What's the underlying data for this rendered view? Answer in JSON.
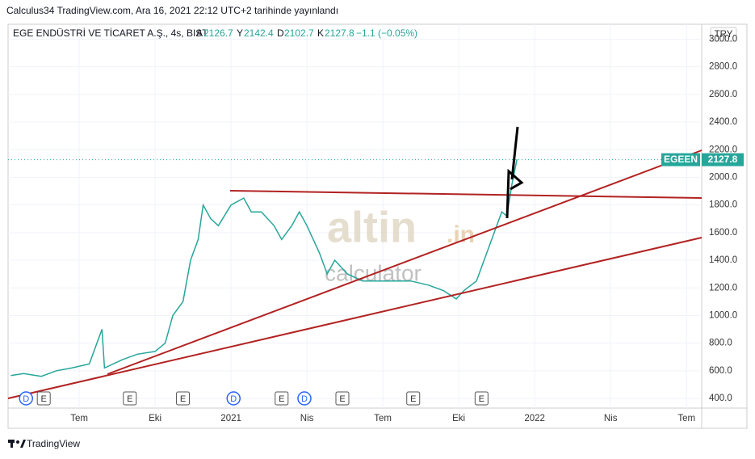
{
  "chart_data": {
    "type": "line",
    "header": "Calculus34 TradingView.com, Ara 16, 2021 22:12 UTC+2 tarihinde yayınlandı",
    "symbol_title": "EGE ENDÜSTRİ VE TİCARET A.Ş., 4s, BIST",
    "ohlc": [
      {
        "label": "A",
        "value": 2126.7
      },
      {
        "label": "Y",
        "value": 2142.4
      },
      {
        "label": "D",
        "value": 2102.7
      },
      {
        "label": "K",
        "value": 2127.8
      }
    ],
    "change": "−1.1 (−0.05%)",
    "currency": "TRY",
    "ticker": "EGEEN",
    "last_price": 2127.8,
    "watermark": [
      "altin",
      ".in",
      "calculator"
    ],
    "brand": "TradingView",
    "series": [
      {
        "name": "EGEEN",
        "color": "#26a69a",
        "x": [
          -2.7,
          -2.2,
          -1.5,
          -0.9,
          -0.3,
          0.4,
          0.9,
          1.0,
          1.7,
          2.3,
          3.0,
          3.4,
          3.7,
          4.1,
          4.4,
          4.7,
          4.9,
          5.2,
          5.5,
          6.0,
          6.5,
          6.8,
          7.2,
          7.7,
          8.0,
          8.4,
          8.7,
          9.0,
          9.5,
          9.8,
          10.1,
          10.6,
          11.2,
          11.9,
          12.5,
          13.1,
          13.8,
          14.4,
          14.9,
          15.2,
          15.7,
          16.0,
          16.3,
          16.7,
          16.9,
          17.1,
          17.3
        ],
        "values": [
          565,
          580,
          560,
          600,
          620,
          650,
          900,
          620,
          680,
          720,
          740,
          800,
          1000,
          1100,
          1400,
          1550,
          1800,
          1700,
          1650,
          1800,
          1850,
          1750,
          1750,
          1650,
          1550,
          1650,
          1750,
          1650,
          1450,
          1300,
          1400,
          1300,
          1250,
          1250,
          1250,
          1250,
          1220,
          1180,
          1120,
          1180,
          1250,
          1400,
          1550,
          1750,
          1720,
          1950,
          2130
        ]
      }
    ],
    "events": [
      {
        "label": "D",
        "x": -2.1
      },
      {
        "label": "E",
        "x": -1.4
      },
      {
        "label": "E",
        "x": 2.0
      },
      {
        "label": "E",
        "x": 4.1
      },
      {
        "label": "D",
        "x": 6.1
      },
      {
        "label": "E",
        "x": 8.0
      },
      {
        "label": "D",
        "x": 8.9
      },
      {
        "label": "E",
        "x": 10.4
      },
      {
        "label": "E",
        "x": 13.2
      },
      {
        "label": "E",
        "x": 15.9
      }
    ],
    "xlim": [
      -2.81,
      24.6
    ],
    "xticks": [
      {
        "value": 0,
        "label": "Tem"
      },
      {
        "value": 3,
        "label": "Eki"
      },
      {
        "value": 6,
        "label": "2021"
      },
      {
        "value": 9,
        "label": "Nis"
      },
      {
        "value": 12,
        "label": "Tem"
      },
      {
        "value": 15,
        "label": "Eki"
      },
      {
        "value": 18,
        "label": "2022"
      },
      {
        "value": 21,
        "label": "Nis"
      },
      {
        "value": 24,
        "label": "Tem"
      }
    ],
    "ylim": [
      330,
      3108
    ],
    "yticks": [
      {
        "value": 400,
        "label": "400.0"
      },
      {
        "value": 600,
        "label": "600.0"
      },
      {
        "value": 800,
        "label": "800.0"
      },
      {
        "value": 1000,
        "label": "1000.0"
      },
      {
        "value": 1200,
        "label": "1200.0"
      },
      {
        "value": 1400,
        "label": "1400.0"
      },
      {
        "value": 1600,
        "label": "1600.0"
      },
      {
        "value": 1800,
        "label": "1800.0"
      },
      {
        "value": 2000,
        "label": "2000.0"
      },
      {
        "value": 2200,
        "label": "2200.0"
      },
      {
        "value": 2400,
        "label": "2400.0"
      },
      {
        "value": 2600,
        "label": "2600.0"
      },
      {
        "value": 2800,
        "label": "2800.0"
      },
      {
        "value": 3000,
        "label": "3000.0"
      }
    ]
  }
}
